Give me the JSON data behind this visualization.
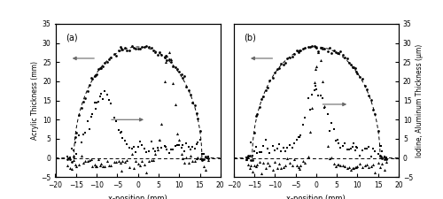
{
  "title_a": "(a)",
  "title_b": "(b)",
  "xlim": [
    -20,
    20
  ],
  "ylim_left": [
    -5,
    35
  ],
  "ylim_right": [
    -5,
    35
  ],
  "yticks": [
    -5,
    0,
    5,
    10,
    15,
    20,
    25,
    30,
    35
  ],
  "xticks": [
    -20,
    -15,
    -10,
    -5,
    0,
    5,
    10,
    15,
    20
  ],
  "xlabel": "x-position (mm)",
  "ylabel_left": "Acrylic Thickness (mm)",
  "ylabel_right": "Iodine, Aluminum Thickness (μm)",
  "background": "#ffffff"
}
